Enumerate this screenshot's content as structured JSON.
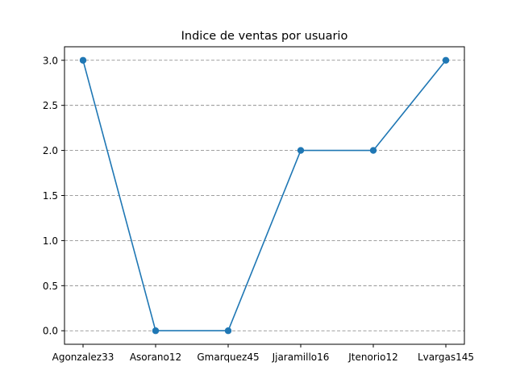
{
  "chart_data": {
    "type": "line",
    "title": "Indice de ventas por usuario",
    "xlabel": "",
    "ylabel": "",
    "categories": [
      "Agonzalez33",
      "Asorano12",
      "Gmarquez45",
      "Jjaramillo16",
      "Jtenorio12",
      "Lvargas145"
    ],
    "series": [
      {
        "values": [
          3,
          0,
          0,
          2,
          2,
          3
        ],
        "color": "#1f77b4",
        "marker": "circle"
      }
    ],
    "ylim": [
      -0.15,
      3.15
    ],
    "yticks": [
      0.0,
      0.5,
      1.0,
      1.5,
      2.0,
      2.5,
      3.0
    ],
    "ytick_labels": [
      "0.0",
      "0.5",
      "1.0",
      "1.5",
      "2.0",
      "2.5",
      "3.0"
    ],
    "grid": {
      "axis": "y",
      "style": "dashed",
      "color": "#808080"
    },
    "legend": "none"
  }
}
